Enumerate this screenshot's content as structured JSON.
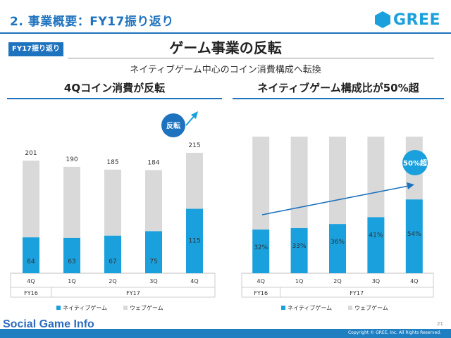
{
  "slide": {
    "title": "2. 事業概要：FY17振り返り",
    "badge": "FY17振り返り",
    "headline": "ゲーム事業の反転",
    "subheadline": "ネイティブゲーム中心のコイン消費構成へ転換",
    "page_number": "21",
    "copyright": "Copyright © GREE, Inc. All Rights Reserved.",
    "logo_text": "GREE",
    "watermark": "Social Game Info"
  },
  "colors": {
    "native": "#1aa0dc",
    "web": "#d9d9d9",
    "accent": "#1e73be",
    "footer": "#1f7fc1"
  },
  "chart_data": [
    {
      "type": "bar",
      "stacked": true,
      "title": "4Qコイン消費が反転",
      "categories": [
        "4Q",
        "1Q",
        "2Q",
        "3Q",
        "4Q"
      ],
      "groups": [
        {
          "label": "FY16",
          "span": 1
        },
        {
          "label": "FY17",
          "span": 4
        }
      ],
      "series": [
        {
          "name": "ネイティブゲーム",
          "values": [
            64,
            63,
            67,
            75,
            115
          ]
        },
        {
          "name": "ウェブゲーム",
          "values": [
            137,
            127,
            118,
            109,
            100
          ]
        }
      ],
      "totals": [
        201,
        190,
        185,
        184,
        215
      ],
      "value_labels": [
        "64",
        "63",
        "67",
        "75",
        "115"
      ],
      "total_labels": [
        "201",
        "190",
        "185",
        "184",
        "215"
      ],
      "annotation": "反転",
      "ylim": [
        0,
        215
      ]
    },
    {
      "type": "bar",
      "stacked": true,
      "percent": true,
      "title": "ネイティブゲーム構成比が50%超",
      "categories": [
        "4Q",
        "1Q",
        "2Q",
        "3Q",
        "4Q"
      ],
      "groups": [
        {
          "label": "FY16",
          "span": 1
        },
        {
          "label": "FY17",
          "span": 4
        }
      ],
      "series": [
        {
          "name": "ネイティブゲーム",
          "values": [
            32,
            33,
            36,
            41,
            54
          ]
        },
        {
          "name": "ウェブゲーム",
          "values": [
            68,
            67,
            64,
            59,
            46
          ]
        }
      ],
      "value_labels": [
        "32%",
        "33%",
        "36%",
        "41%",
        "54%"
      ],
      "annotation": "50%超",
      "ylim": [
        0,
        100
      ]
    }
  ]
}
